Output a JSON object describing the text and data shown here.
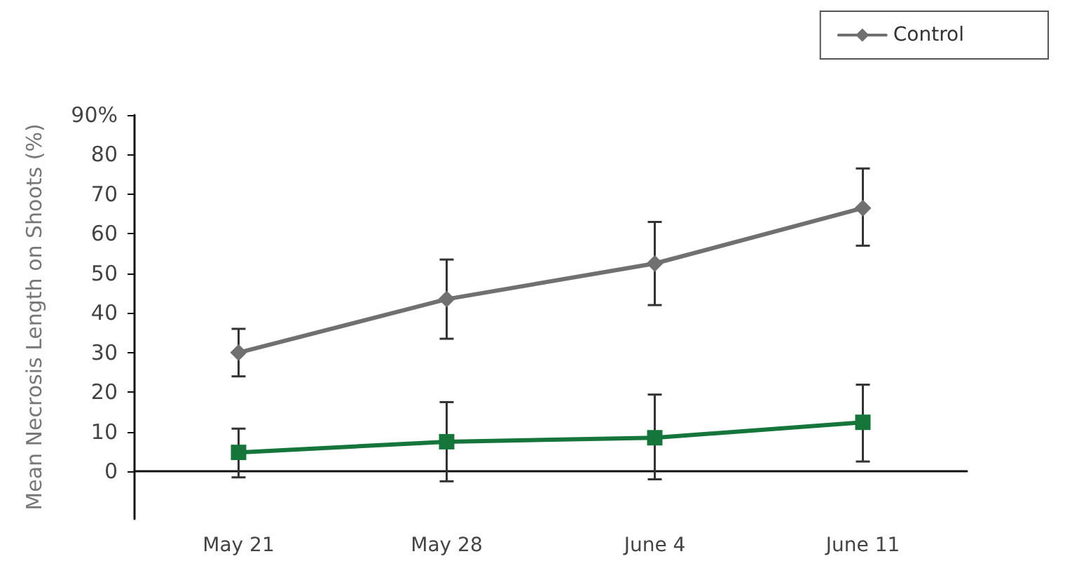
{
  "chart_data": {
    "type": "line",
    "ylabel": "Mean Necrosis Length on Shoots (%)",
    "categories": [
      "May 21",
      "May 28",
      "June 4",
      "June 11"
    ],
    "series": [
      {
        "name": "Control",
        "color": "#707070",
        "marker": "diamond",
        "values": [
          30,
          43.5,
          52.5,
          66.5
        ],
        "errors": [
          [
            24,
            36
          ],
          [
            33.5,
            53.5
          ],
          [
            42,
            63
          ],
          [
            57,
            76.5
          ]
        ]
      },
      {
        "color": "#16753a",
        "marker": "square",
        "values": [
          4.8,
          7.5,
          8.5,
          12.4
        ],
        "errors": [
          [
            -1.5,
            10.8
          ],
          [
            -2.5,
            17.5
          ],
          [
            -2,
            19.4
          ],
          [
            2.5,
            21.9
          ]
        ]
      }
    ],
    "ylim": [
      -12,
      90
    ],
    "yticks": [
      0,
      10,
      20,
      30,
      40,
      50,
      60,
      70,
      80,
      {
        "value": 90,
        "label": "90%"
      }
    ],
    "legend": "top right",
    "line_style": "solid"
  }
}
